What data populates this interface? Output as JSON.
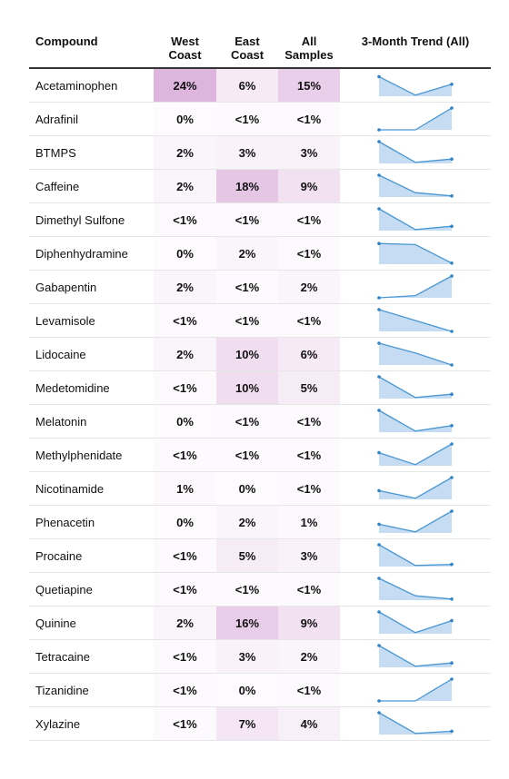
{
  "headers": {
    "compound": "Compound",
    "west": [
      "West",
      "Coast"
    ],
    "east": [
      "East",
      "Coast"
    ],
    "all": [
      "All",
      "Samples"
    ],
    "trend": "3-Month Trend (All)"
  },
  "colors": {
    "heat_base": "#c98bc9",
    "spark_fill": "#c6dcf2",
    "spark_line": "#4a97d2",
    "spark_dot": "#2f83c6"
  },
  "chart_data": {
    "type": "table",
    "columns": [
      "Compound",
      "West Coast",
      "East Coast",
      "All Samples",
      "3-Month Trend (All)"
    ],
    "rows": [
      {
        "compound": "Acetaminophen",
        "west": "24%",
        "east": "6%",
        "all": "15%",
        "trend": [
          0.9,
          0.05,
          0.55
        ]
      },
      {
        "compound": "Adrafinil",
        "west": "0%",
        "east": "<1%",
        "all": "<1%",
        "trend": [
          0.0,
          0.0,
          1.0
        ]
      },
      {
        "compound": "BTMPS",
        "west": "2%",
        "east": "3%",
        "all": "3%",
        "trend": [
          1.0,
          0.05,
          0.2
        ]
      },
      {
        "compound": "Caffeine",
        "west": "2%",
        "east": "18%",
        "all": "9%",
        "trend": [
          1.0,
          0.2,
          0.05
        ]
      },
      {
        "compound": "Dimethyl Sulfone",
        "west": "<1%",
        "east": "<1%",
        "all": "<1%",
        "trend": [
          1.0,
          0.05,
          0.2
        ]
      },
      {
        "compound": "Diphenhydramine",
        "west": "0%",
        "east": "2%",
        "all": "<1%",
        "trend": [
          0.95,
          0.9,
          0.05
        ]
      },
      {
        "compound": "Gabapentin",
        "west": "2%",
        "east": "<1%",
        "all": "2%",
        "trend": [
          0.0,
          0.1,
          1.0
        ]
      },
      {
        "compound": "Levamisole",
        "west": "<1%",
        "east": "<1%",
        "all": "<1%",
        "trend": [
          1.0,
          0.5,
          0.0
        ]
      },
      {
        "compound": "Lidocaine",
        "west": "2%",
        "east": "10%",
        "all": "6%",
        "trend": [
          1.0,
          0.55,
          0.0
        ]
      },
      {
        "compound": "Medetomidine",
        "west": "<1%",
        "east": "10%",
        "all": "5%",
        "trend": [
          1.0,
          0.05,
          0.2
        ]
      },
      {
        "compound": "Melatonin",
        "west": "0%",
        "east": "<1%",
        "all": "<1%",
        "trend": [
          1.0,
          0.05,
          0.3
        ]
      },
      {
        "compound": "Methylphenidate",
        "west": "<1%",
        "east": "<1%",
        "all": "<1%",
        "trend": [
          0.6,
          0.05,
          1.0
        ]
      },
      {
        "compound": "Nicotinamide",
        "west": "1%",
        "east": "0%",
        "all": "<1%",
        "trend": [
          0.4,
          0.05,
          1.0
        ]
      },
      {
        "compound": "Phenacetin",
        "west": "0%",
        "east": "2%",
        "all": "1%",
        "trend": [
          0.4,
          0.05,
          1.0
        ]
      },
      {
        "compound": "Procaine",
        "west": "<1%",
        "east": "5%",
        "all": "3%",
        "trend": [
          1.0,
          0.05,
          0.1
        ]
      },
      {
        "compound": "Quetiapine",
        "west": "<1%",
        "east": "<1%",
        "all": "<1%",
        "trend": [
          1.0,
          0.2,
          0.05
        ]
      },
      {
        "compound": "Quinine",
        "west": "2%",
        "east": "16%",
        "all": "9%",
        "trend": [
          1.0,
          0.05,
          0.6
        ]
      },
      {
        "compound": "Tetracaine",
        "west": "<1%",
        "east": "3%",
        "all": "2%",
        "trend": [
          1.0,
          0.05,
          0.2
        ]
      },
      {
        "compound": "Tizanidine",
        "west": "<1%",
        "east": "0%",
        "all": "<1%",
        "trend": [
          0.0,
          0.0,
          1.0
        ]
      },
      {
        "compound": "Xylazine",
        "west": "<1%",
        "east": "7%",
        "all": "4%",
        "trend": [
          1.0,
          0.05,
          0.15
        ]
      }
    ]
  }
}
